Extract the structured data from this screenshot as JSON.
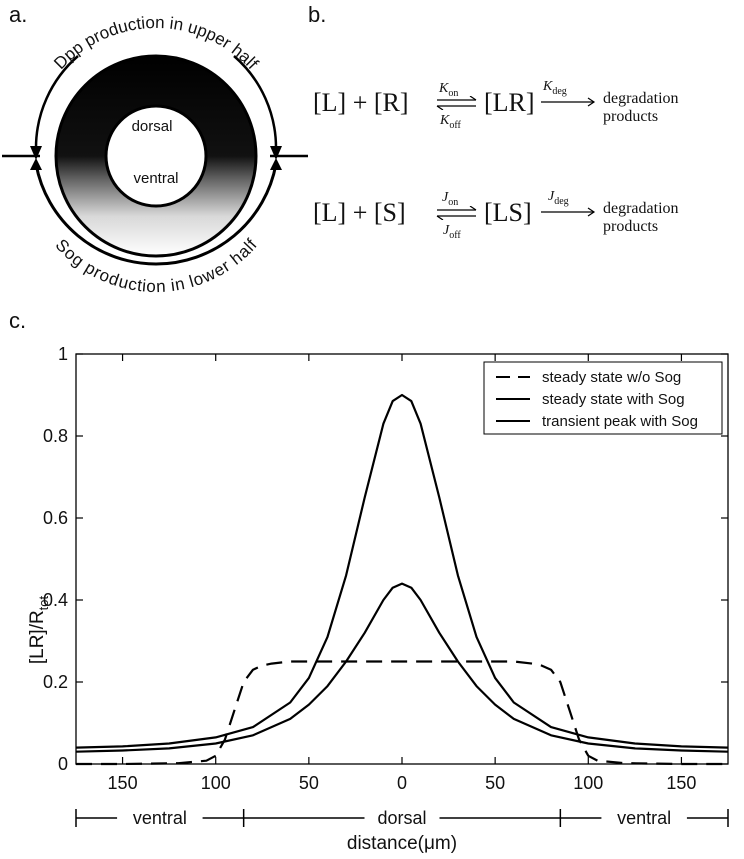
{
  "panels": {
    "a": "a.",
    "b": "b.",
    "c": "c."
  },
  "ring": {
    "top_label": "Dpp production in upper half",
    "bottom_label": "Sog production in lower half",
    "inner_top": "dorsal",
    "inner_bottom": "ventral"
  },
  "reactions": {
    "r1": {
      "left": "[L] + [R]",
      "k_forward": "K",
      "k_forward_sub": "on",
      "k_reverse": "K",
      "k_reverse_sub": "off",
      "complex": "[LR]",
      "k_deg": "K",
      "k_deg_sub": "deg",
      "products_line1": "degradation",
      "products_line2": "products"
    },
    "r2": {
      "left": "[L] + [S]",
      "k_forward": "J",
      "k_forward_sub": "on",
      "k_reverse": "J",
      "k_reverse_sub": "off",
      "complex": "[LS]",
      "k_deg": "J",
      "k_deg_sub": "deg",
      "products_line1": "degradation",
      "products_line2": "products"
    }
  },
  "chart_data": {
    "type": "line",
    "title": "",
    "xlabel": "distance(μm)",
    "ylabel": "[LR]/R",
    "ylabel_sub": "tot",
    "xlim": [
      -175,
      175
    ],
    "ylim": [
      0,
      1
    ],
    "x_ticks": [
      -150,
      -100,
      -50,
      0,
      50,
      100,
      150
    ],
    "x_tick_labels": [
      "150",
      "100",
      "50",
      "0",
      "50",
      "100",
      "150"
    ],
    "y_ticks": [
      0,
      0.2,
      0.4,
      0.6,
      0.8,
      1
    ],
    "y_tick_labels": [
      "0",
      "0.2",
      "0.4",
      "0.6",
      "0.8",
      "1"
    ],
    "legend_position": "top-right",
    "region_labels": [
      "ventral",
      "dorsal",
      "ventral"
    ],
    "region_bounds": [
      -175,
      -85,
      85,
      175
    ],
    "series": [
      {
        "name": "steady state w/o Sog",
        "style": "dashed",
        "x": [
          -175,
          -150,
          -120,
          -105,
          -100,
          -95,
          -90,
          -85,
          -80,
          -75,
          -70,
          -60,
          -50,
          -40,
          -20,
          0,
          20,
          40,
          50,
          60,
          70,
          75,
          80,
          85,
          90,
          95,
          100,
          105,
          120,
          150,
          175
        ],
        "y": [
          0,
          0,
          0.002,
          0.008,
          0.02,
          0.06,
          0.13,
          0.2,
          0.23,
          0.24,
          0.245,
          0.25,
          0.25,
          0.25,
          0.25,
          0.25,
          0.25,
          0.25,
          0.25,
          0.25,
          0.245,
          0.24,
          0.23,
          0.2,
          0.13,
          0.06,
          0.02,
          0.008,
          0.002,
          0,
          0
        ]
      },
      {
        "name": "steady state with Sog",
        "style": "solid",
        "x": [
          -175,
          -150,
          -125,
          -100,
          -80,
          -60,
          -50,
          -40,
          -30,
          -20,
          -10,
          -5,
          0,
          5,
          10,
          20,
          30,
          40,
          50,
          60,
          80,
          100,
          125,
          150,
          175
        ],
        "y": [
          0.04,
          0.043,
          0.05,
          0.065,
          0.09,
          0.15,
          0.21,
          0.31,
          0.46,
          0.65,
          0.83,
          0.885,
          0.9,
          0.885,
          0.83,
          0.65,
          0.46,
          0.31,
          0.21,
          0.15,
          0.09,
          0.065,
          0.05,
          0.043,
          0.04
        ]
      },
      {
        "name": "transient peak with Sog",
        "style": "solid",
        "x": [
          -175,
          -150,
          -125,
          -100,
          -80,
          -60,
          -50,
          -40,
          -30,
          -20,
          -10,
          -5,
          0,
          5,
          10,
          20,
          30,
          40,
          50,
          60,
          80,
          100,
          125,
          150,
          175
        ],
        "y": [
          0.03,
          0.033,
          0.038,
          0.05,
          0.07,
          0.11,
          0.145,
          0.19,
          0.25,
          0.32,
          0.4,
          0.43,
          0.44,
          0.43,
          0.4,
          0.32,
          0.25,
          0.19,
          0.145,
          0.11,
          0.07,
          0.05,
          0.038,
          0.033,
          0.03
        ]
      }
    ]
  }
}
